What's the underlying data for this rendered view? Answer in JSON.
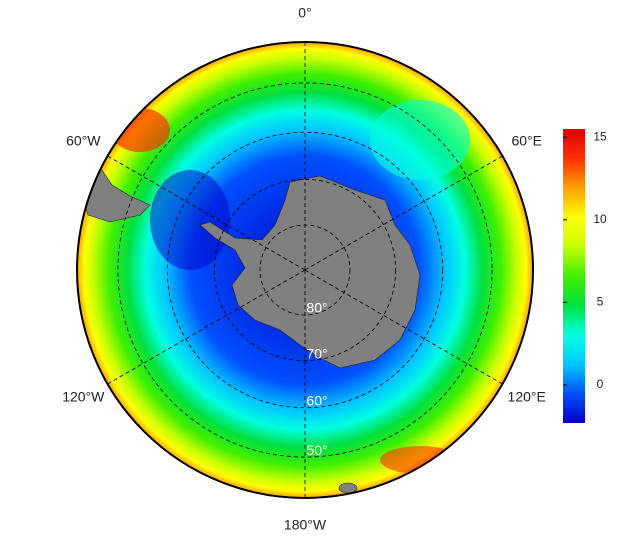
{
  "map": {
    "meridians": [
      {
        "value": 0,
        "label": "0°"
      },
      {
        "value": 60,
        "label": "60°E"
      },
      {
        "value": 120,
        "label": "120°E"
      },
      {
        "value": 180,
        "label": "180°W"
      },
      {
        "value": -120,
        "label": "120°W"
      },
      {
        "value": -60,
        "label": "60°W"
      }
    ],
    "parallels": [
      {
        "value": -80,
        "label": "80°"
      },
      {
        "value": -70,
        "label": "70°"
      },
      {
        "value": -60,
        "label": "60°"
      },
      {
        "value": -50,
        "label": "50°"
      }
    ],
    "land_color": "#808080",
    "colorbar": {
      "lim": [
        -2.3,
        15.5
      ],
      "ticks": [
        0,
        5,
        10,
        15
      ],
      "colors": [
        "#0000c8",
        "#0050ff",
        "#00c8ff",
        "#00ffe0",
        "#00e040",
        "#40f000",
        "#c8ff00",
        "#ffff00",
        "#ffa000",
        "#ff3000",
        "#e00000"
      ]
    }
  }
}
